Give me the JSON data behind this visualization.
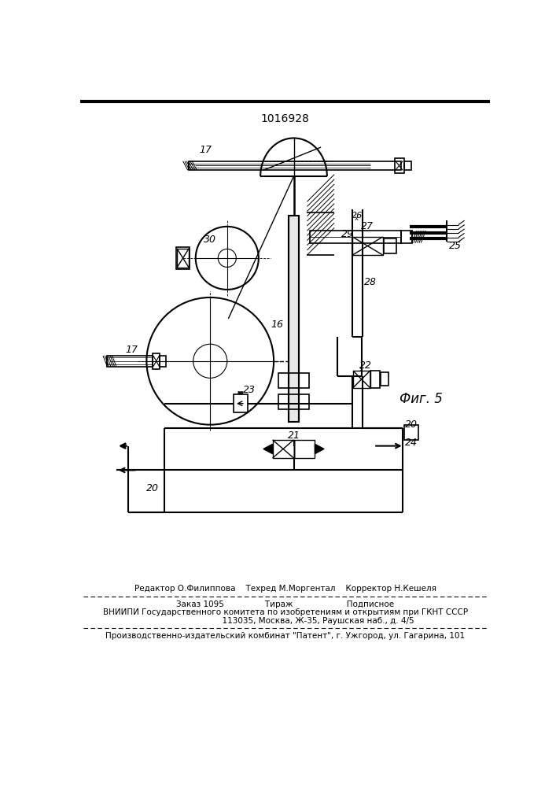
{
  "patent_number": "1016928",
  "fig_label": "Фиг. 5",
  "bg_color": "#ffffff",
  "line_color": "#000000",
  "footer_line1": "Редактор О.Филиппова    Техред М.Моргентал    Корректор Н.Кешеля",
  "footer_line2": "Заказ 1095                Тираж                     Подписное",
  "footer_line3": "ВНИИПИ Государственного комитета по изобретениям и открытиям при ГКНТ СССР",
  "footer_line4": "                          113035, Москва, Ж-35, Раушская наб., д. 4/5",
  "footer_line5": "Производственно-издательский комбинат \"Патент\", г. Ужгород, ул. Гагарина, 101"
}
